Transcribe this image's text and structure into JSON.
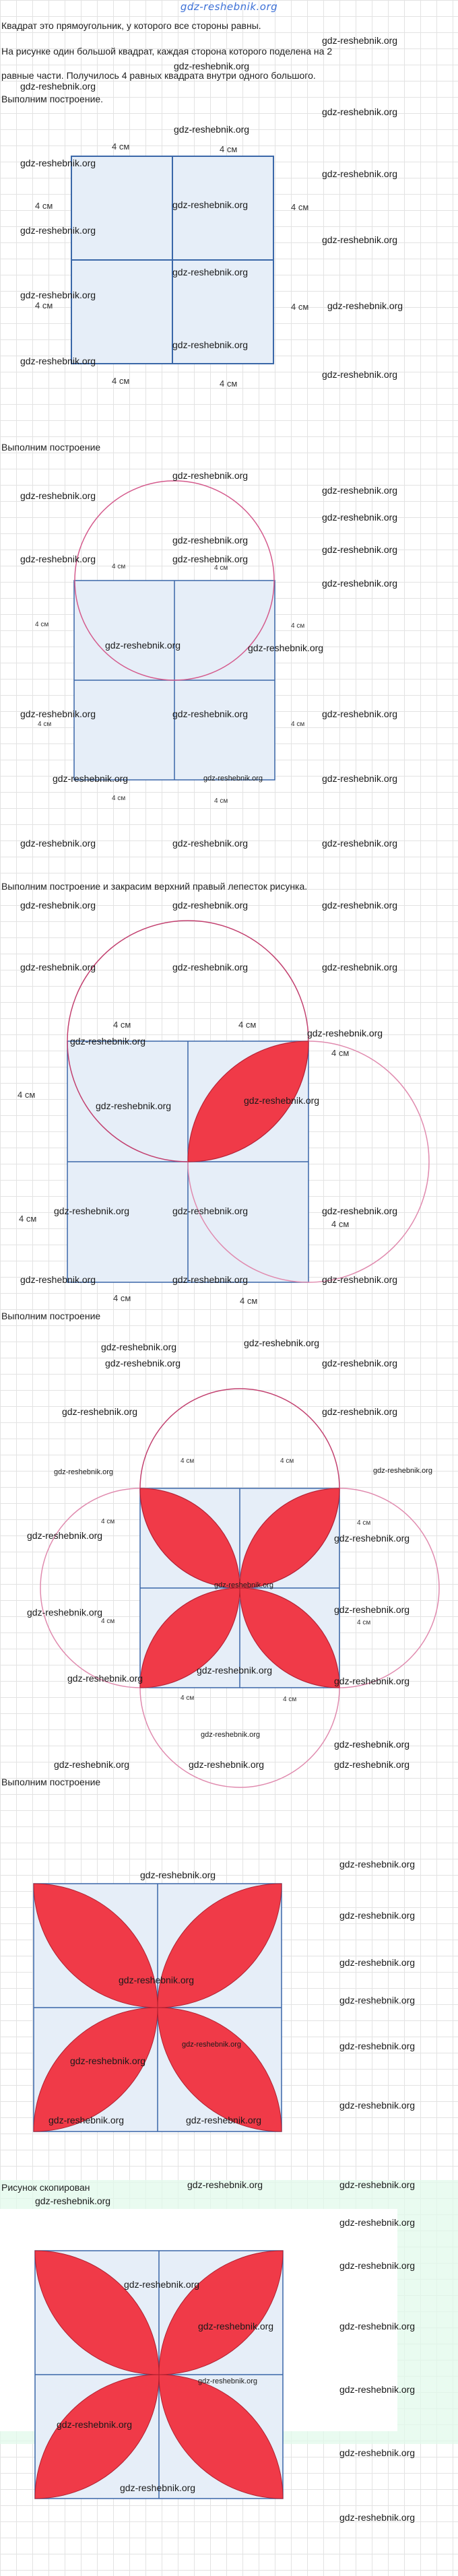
{
  "header": {
    "site_logo": "gdz-reshebnik.org"
  },
  "watermark": "gdz-reshebnik.org",
  "unit_label": "4 см",
  "colors": {
    "square_fill": "#e6eef8",
    "square_stroke": "#3a67a8",
    "circle_stroke": "#d45a8c",
    "petal_fill": "#f03a48",
    "link": "#3b6fd6"
  },
  "texts": {
    "line1": "Квадрат это прямоугольник, у которого все стороны равны.",
    "line2": "На рисунке один большой квадрат, каждая сторона которого поделена на 2",
    "line3": "равные части. Получилось 4 равных квадрата внутри одного большого.",
    "step1": "Выполним построение.",
    "step2": "Выполним построение",
    "step3": "Выполним построение и закрасим верхний правый лепесток рисунка.",
    "step4": "Выполним построение",
    "step5": "Выполним построение",
    "step6": "Рисунок скопирован"
  }
}
